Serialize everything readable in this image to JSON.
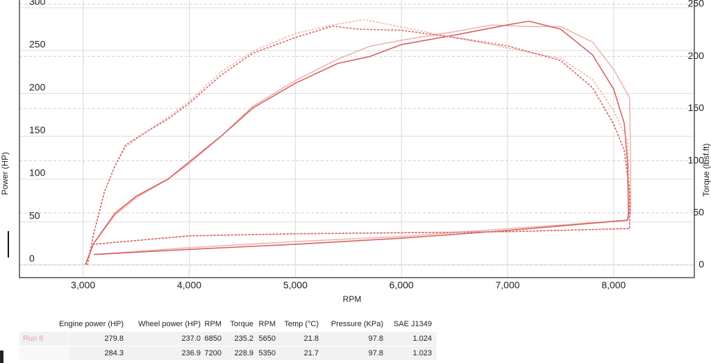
{
  "chart_data": {
    "type": "line",
    "xlabel": "RPM",
    "ylabel": "Power (HP)",
    "y2label": "Torque (lbsf.ft)",
    "xlim": [
      2400,
      8760
    ],
    "ylim": [
      -15,
      309
    ],
    "y2lim": [
      -12,
      254
    ],
    "xticks": [
      {
        "value": 3000,
        "label": "3,000"
      },
      {
        "value": 4000,
        "label": "4,000"
      },
      {
        "value": 5000,
        "label": "5,000"
      },
      {
        "value": 6000,
        "label": "6,000"
      },
      {
        "value": 7000,
        "label": "7,000"
      },
      {
        "value": 8000,
        "label": "8,000"
      }
    ],
    "yticks": [
      0,
      50,
      100,
      150,
      200,
      250,
      300
    ],
    "y2ticks": [
      0,
      50,
      100,
      150,
      200,
      250
    ],
    "grid": true,
    "series": [
      {
        "color": "#ecb5b1",
        "dash": false,
        "x": [
          3020,
          3100,
          3300,
          3500,
          3800,
          4000,
          4300,
          4600,
          5000,
          5400,
          5700,
          6000,
          6500,
          6850,
          7200,
          7500,
          7800,
          8000,
          8150,
          8160,
          8160,
          8130,
          7000,
          6000,
          5000,
          4000,
          3100
        ],
        "values": [
          0,
          25,
          58,
          78,
          100,
          118,
          150,
          185,
          215,
          240,
          255,
          262,
          272,
          279.8,
          278,
          278,
          260,
          228,
          195,
          120,
          60,
          52,
          42,
          33,
          27,
          20,
          12
        ]
      },
      {
        "color": "#d9605f",
        "dash": false,
        "x": [
          3020,
          3100,
          3300,
          3500,
          3800,
          4000,
          4300,
          4600,
          5000,
          5400,
          5700,
          6000,
          6500,
          7000,
          7200,
          7500,
          7800,
          8000,
          8100,
          8130,
          8140,
          8130,
          7000,
          6000,
          5000,
          4000,
          3100
        ],
        "values": [
          0,
          25,
          60,
          80,
          100,
          120,
          150,
          183,
          212,
          235,
          243,
          257,
          268,
          280,
          284.3,
          275,
          245,
          205,
          165,
          120,
          60,
          52,
          40,
          31,
          24,
          18,
          12
        ]
      },
      {
        "color": "#ecb5b1",
        "dash": true,
        "axis": "y2",
        "x": [
          3040,
          3100,
          3200,
          3300,
          3400,
          3600,
          3800,
          4000,
          4300,
          4600,
          5000,
          5350,
          5650,
          6000,
          6500,
          7000,
          7500,
          7800,
          8000,
          8130,
          8150,
          8150,
          7000,
          6000,
          5000,
          4000,
          3100
        ],
        "values": [
          0,
          30,
          70,
          95,
          113,
          128,
          142,
          157,
          185,
          205,
          222,
          230,
          235.2,
          228,
          218,
          208,
          198,
          178,
          148,
          120,
          70,
          35,
          32,
          31,
          30,
          28,
          20
        ]
      },
      {
        "color": "#d9605f",
        "dash": true,
        "axis": "y2",
        "x": [
          3040,
          3100,
          3200,
          3300,
          3400,
          3600,
          3800,
          4000,
          4300,
          4600,
          5000,
          5350,
          5600,
          6000,
          6500,
          7000,
          7500,
          7800,
          8000,
          8100,
          8150,
          8150,
          7000,
          6000,
          5000,
          4000,
          3100
        ],
        "values": [
          0,
          30,
          70,
          95,
          115,
          128,
          140,
          155,
          182,
          203,
          218,
          228.9,
          226,
          225,
          218,
          210,
          196,
          170,
          135,
          110,
          70,
          35,
          32,
          31,
          30,
          28,
          20
        ]
      }
    ]
  },
  "table": {
    "columns": [
      "Engine power (HP)",
      "Wheel power (HP)",
      "RPM",
      "Torque",
      "RPM",
      "Temp (°C)",
      "Pressure (KPa)",
      "SAE J1349"
    ],
    "row_labels": [
      "Run 8",
      null
    ],
    "rows": [
      [
        "279.8",
        "237.0",
        "6850",
        "235.2",
        "5650",
        "21.8",
        "97.8",
        "1.024"
      ],
      [
        "284.3",
        "236.9",
        "7200",
        "228.9",
        "5350",
        "21.7",
        "97.8",
        "1.023"
      ]
    ]
  }
}
